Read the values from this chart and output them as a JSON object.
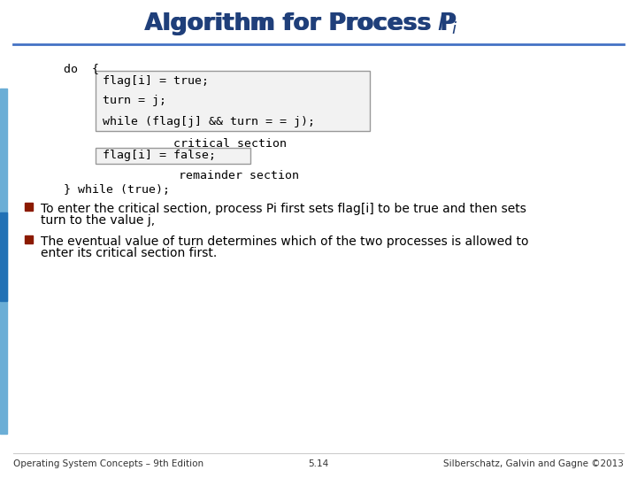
{
  "title_main": "Algorithm for Process P",
  "title_sub": "i",
  "bg_color": "#ffffff",
  "title_color": "#1F3F7A",
  "title_P_color": "#0000CC",
  "line_color": "#4472C4",
  "sidebar_color": "#6BAED6",
  "sidebar_dark_color": "#2171B5",
  "code_font_size": 9.5,
  "body_font_size": 10,
  "footer_font_size": 7.5,
  "code_color": "#000000",
  "bullet_color": "#8B1A00",
  "code_line1": "flag[i] = true;",
  "code_line2": "turn = j;",
  "code_line3": "while (flag[j] && turn = = j);",
  "code_line_box2": "flag[i] = false;",
  "code_do": "do  {",
  "code_while": "} while (true);",
  "critical_section": "critical section",
  "remainder_section": "remainder section",
  "bullet1_line1": "To enter the critical section, process Pi first sets flag[i] to be true and then sets",
  "bullet1_line2": "turn to the value j,",
  "bullet2_line1": "The eventual value of turn determines which of the two processes is allowed to",
  "bullet2_line2": "enter its critical section first.",
  "footer_left": "Operating System Concepts – 9th Edition",
  "footer_center": "5.14",
  "footer_right": "Silberschatz, Galvin and Gagne ©2013"
}
